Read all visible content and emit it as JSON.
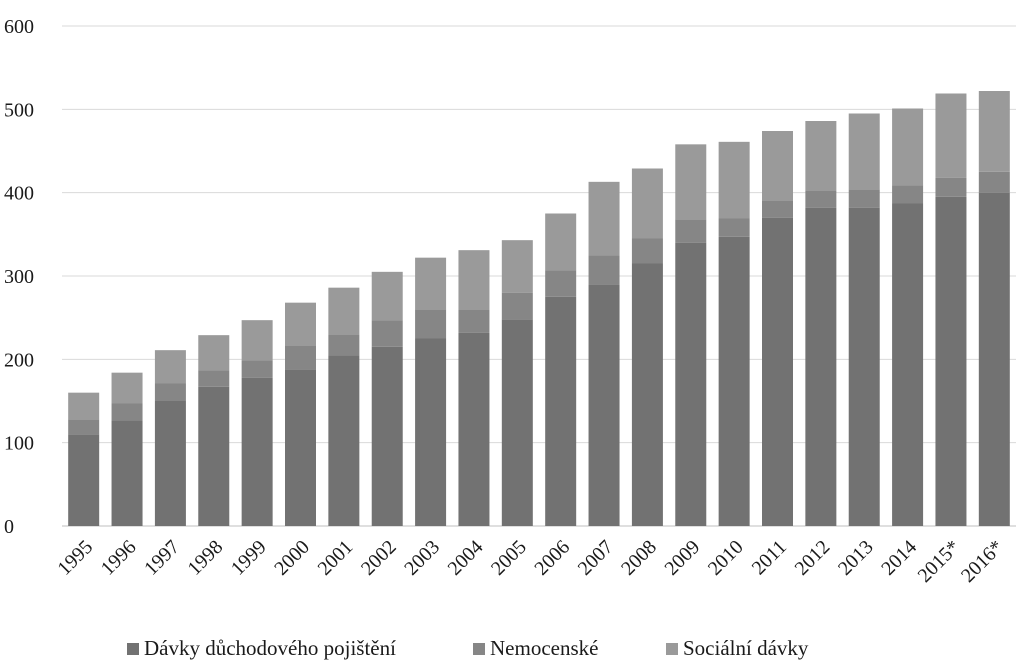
{
  "chart_data": {
    "type": "bar",
    "stacked": true,
    "title": "",
    "xlabel": "",
    "ylabel": "",
    "ylim": [
      0,
      600
    ],
    "yticks": [
      0,
      100,
      200,
      300,
      400,
      500,
      600
    ],
    "grid": true,
    "legend_position": "bottom",
    "categories": [
      "1995",
      "1996",
      "1997",
      "1998",
      "1999",
      "2000",
      "2001",
      "2002",
      "2003",
      "2004",
      "2005",
      "2006",
      "2007",
      "2008",
      "2009",
      "2010",
      "2011",
      "2012",
      "2013",
      "2014",
      "2015*",
      "2016*"
    ],
    "series": [
      {
        "name": "Dávky důchodového pojištění",
        "color": "#727272",
        "values": [
          110,
          127,
          150,
          167,
          178,
          188,
          205,
          215,
          225,
          232,
          248,
          275,
          290,
          315,
          340,
          347,
          370,
          382,
          382,
          387,
          395,
          400
        ]
      },
      {
        "name": "Nemocenské",
        "color": "#868686",
        "values": [
          18,
          20,
          21,
          20,
          21,
          28,
          25,
          32,
          35,
          28,
          32,
          32,
          35,
          30,
          28,
          22,
          20,
          20,
          22,
          22,
          23,
          25
        ]
      },
      {
        "name": "Sociální dávky",
        "color": "#9a9a9a",
        "values": [
          32,
          37,
          40,
          42,
          48,
          52,
          56,
          58,
          62,
          71,
          63,
          68,
          88,
          84,
          90,
          92,
          84,
          84,
          91,
          92,
          101,
          97
        ]
      }
    ]
  }
}
